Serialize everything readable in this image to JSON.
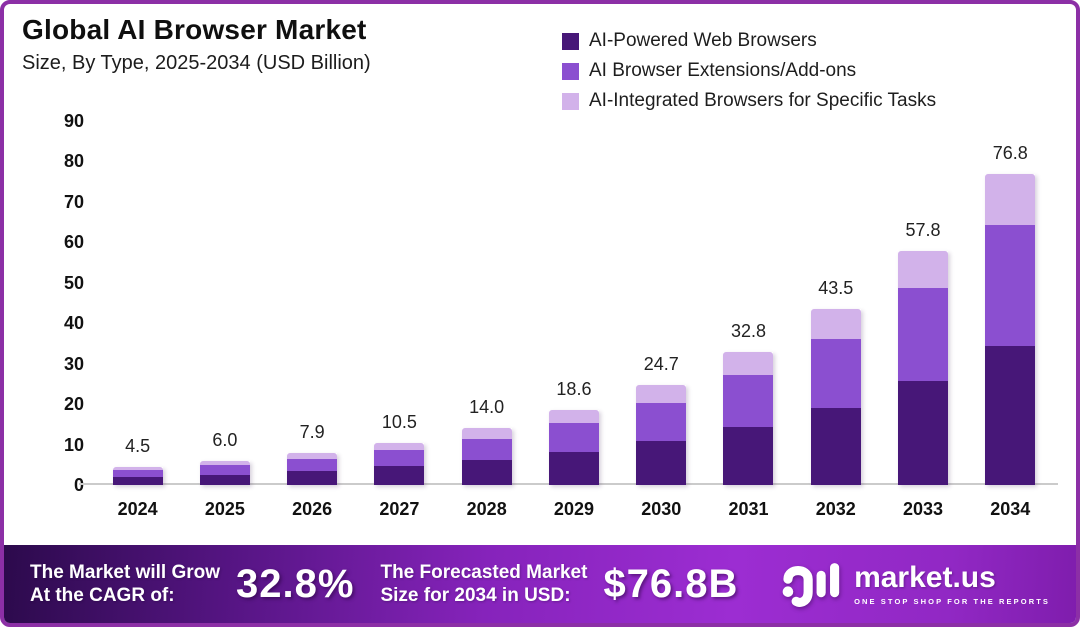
{
  "title": "Global AI Browser Market",
  "subtitle": "Size, By Type, 2025-2034 (USD Billion)",
  "legend": [
    {
      "label": "AI-Powered Web Browsers",
      "color": "#471778"
    },
    {
      "label": "AI Browser Extensions/Add-ons",
      "color": "#8b4fd0"
    },
    {
      "label": "AI-Integrated Browsers for Specific Tasks",
      "color": "#d2b2ea"
    }
  ],
  "chart_data": {
    "type": "bar",
    "stacked": true,
    "title": "Global AI Browser Market Size, By Type, 2025-2034 (USD Billion)",
    "xlabel": "",
    "ylabel": "",
    "categories": [
      "2024",
      "2025",
      "2026",
      "2027",
      "2028",
      "2029",
      "2030",
      "2031",
      "2032",
      "2033",
      "2034"
    ],
    "series": [
      {
        "name": "AI-Powered Web Browsers",
        "color": "#471778",
        "values": [
          2.0,
          2.6,
          3.5,
          4.6,
          6.1,
          8.1,
          10.9,
          14.3,
          19.1,
          25.7,
          34.4
        ]
      },
      {
        "name": "AI Browser Extensions/Add-ons",
        "color": "#8b4fd0",
        "values": [
          1.6,
          2.3,
          3.0,
          4.0,
          5.2,
          7.2,
          9.4,
          12.9,
          17.0,
          23.0,
          30.0
        ]
      },
      {
        "name": "AI-Integrated Browsers for Specific Tasks",
        "color": "#d2b2ea",
        "values": [
          0.9,
          1.1,
          1.4,
          1.9,
          2.7,
          3.3,
          4.4,
          5.6,
          7.4,
          9.1,
          12.4
        ]
      }
    ],
    "totals": [
      4.5,
      6.0,
      7.9,
      10.5,
      14.0,
      18.6,
      24.7,
      32.8,
      43.5,
      57.8,
      76.8
    ],
    "total_labels": [
      "4.5",
      "6.0",
      "7.9",
      "10.5",
      "14.0",
      "18.6",
      "24.7",
      "32.8",
      "43.5",
      "57.8",
      "76.8"
    ],
    "ylim": [
      0,
      90
    ],
    "yticks": [
      0,
      10,
      20,
      30,
      40,
      50,
      60,
      70,
      80,
      90
    ],
    "grid": false,
    "legend_position": "top-right"
  },
  "footer": {
    "cagr_label_line1": "The Market will Grow",
    "cagr_label_line2": "At the CAGR of:",
    "cagr_value": "32.8%",
    "forecast_label_line1": "The Forecasted Market",
    "forecast_label_line2": "Size for 2034 in USD:",
    "forecast_value": "$76.8B",
    "logo_text": "market.us",
    "logo_tagline": "ONE STOP SHOP FOR THE REPORTS"
  },
  "colors": {
    "frame_border": "#8c2fa6",
    "banner_gradient_left": "#2c0a4c",
    "banner_gradient_bright": "#9c2dd2",
    "banner_gradient_right": "#7f1dad",
    "axis_text": "#111111",
    "value_label_text": "#222222",
    "baseline": "#cbcbcb",
    "background": "#ffffff"
  }
}
